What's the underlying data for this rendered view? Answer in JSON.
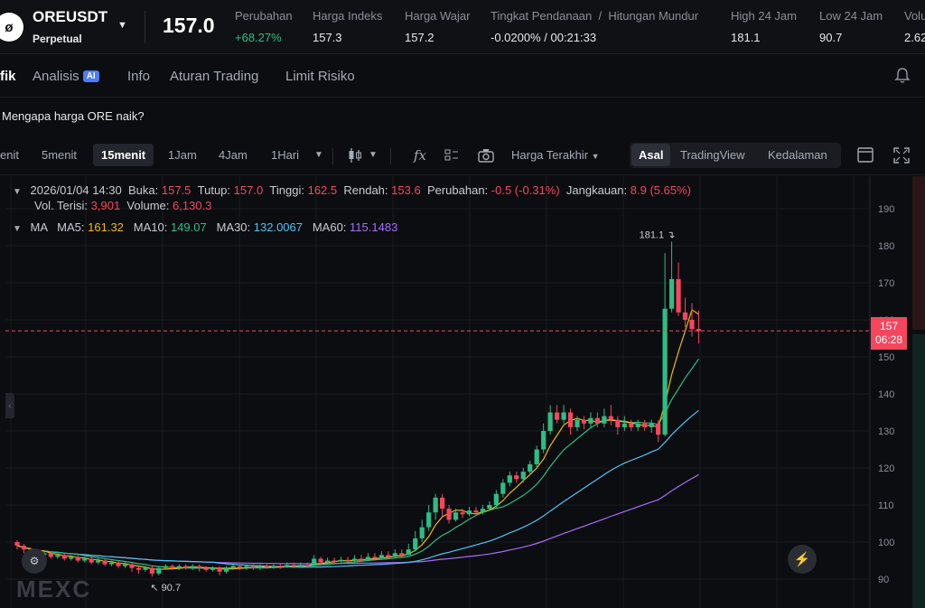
{
  "header": {
    "symbol": "OREUSDT",
    "contract_type": "Perpetual",
    "symbol_icon": "ore-logo-icon",
    "last_price": "157.0",
    "stats": [
      {
        "label": "Perubahan",
        "value": "+68.27%",
        "tone": "up"
      },
      {
        "label": "Harga Indeks",
        "value": "157.3"
      },
      {
        "label": "Harga Wajar",
        "value": "157.2"
      },
      {
        "label": "Tingkat Pendanaan  /  Hitungan Mundur",
        "value": "-0.0200% / 00:21:33"
      },
      {
        "label": "High 24 Jam",
        "value": "181.1"
      },
      {
        "label": "Low 24 Jam",
        "value": "90.7"
      },
      {
        "label": "Volu",
        "value": "2.62"
      }
    ]
  },
  "tabs": [
    {
      "label": "fik",
      "active": true
    },
    {
      "label": "Analisis",
      "badge": "AI"
    },
    {
      "label": "Info"
    },
    {
      "label": "Aturan Trading"
    },
    {
      "label": "Limit Risiko"
    }
  ],
  "why_link": "Mengapa harga ORE naik?",
  "timeframes": [
    "enit",
    "5menit",
    "15menit",
    "1Jam",
    "4Jam",
    "1Hari"
  ],
  "active_timeframe": "15menit",
  "price_type": "Harga Terakhir",
  "views": [
    "Asal",
    "TradingView",
    "Kedalaman"
  ],
  "active_view": "Asal",
  "ohlc": {
    "date": "2026/01/04 14:30",
    "open_label": "Buka:",
    "open": "157.5",
    "close_label": "Tutup:",
    "close": "157.0",
    "high_label": "Tinggi:",
    "high": "162.5",
    "low_label": "Rendah:",
    "low": "153.6",
    "change_label": "Perubahan:",
    "change": "-0.5 (-0.31%)",
    "range_label": "Jangkauan:",
    "range": "8.9 (5.65%)",
    "filled_label": "Vol. Terisi:",
    "filled": "3,901",
    "volume_label": "Volume:",
    "volume": "6,130.3"
  },
  "ma_legend": {
    "title": "MA",
    "ma5_label": "MA5:",
    "ma5": "161.32",
    "ma10_label": "MA10:",
    "ma10": "149.07",
    "ma30_label": "MA30:",
    "ma30": "132.0067",
    "ma60_label": "MA60:",
    "ma60": "115.1483"
  },
  "price_tag": {
    "price": "157",
    "countdown": "06:28"
  },
  "high_marker": "181.1",
  "low_marker": "90.7",
  "watermark": "MEXC",
  "colors": {
    "up": "#2ebd85",
    "down": "#f6465d",
    "ma5": "#f0b90b",
    "ma10": "#2ebd85",
    "ma30": "#4fc3f7",
    "ma60": "#a66cff"
  },
  "chart_data": {
    "type": "candlestick",
    "y_ticks": [
      190,
      180,
      170,
      160,
      150,
      140,
      130,
      120,
      110,
      100,
      90
    ],
    "ylim": [
      87,
      196
    ],
    "current_price": 157,
    "candles": [
      [
        100,
        99,
        100.5,
        98
      ],
      [
        99,
        98,
        99.5,
        97
      ],
      [
        98,
        97.5,
        98.5,
        96.5
      ],
      [
        97.5,
        96.5,
        98,
        96
      ],
      [
        96.5,
        97,
        97.5,
        96
      ],
      [
        97,
        96,
        97.5,
        95.5
      ],
      [
        96,
        96.5,
        97,
        95.5
      ],
      [
        96.5,
        95.5,
        97,
        95
      ],
      [
        95.5,
        96,
        96.5,
        95
      ],
      [
        96,
        95,
        96.5,
        94.5
      ],
      [
        95,
        95.5,
        96,
        94.5
      ],
      [
        95.5,
        94.5,
        96,
        94
      ],
      [
        94.5,
        95,
        95.5,
        94
      ],
      [
        95,
        94,
        95.5,
        93.5
      ],
      [
        94,
        94.5,
        95,
        93.5
      ],
      [
        94.5,
        93.5,
        95,
        93
      ],
      [
        93.5,
        94,
        94.5,
        93
      ],
      [
        94,
        93,
        94.5,
        92
      ],
      [
        93,
        92.5,
        93.5,
        91.5
      ],
      [
        92.5,
        93,
        93.5,
        92
      ],
      [
        93,
        91.5,
        93.5,
        90.7
      ],
      [
        91.5,
        93,
        93.5,
        91
      ],
      [
        93,
        93.5,
        94,
        92.5
      ],
      [
        93.5,
        93,
        94,
        92.5
      ],
      [
        93,
        93.5,
        94,
        92.5
      ],
      [
        93.5,
        93,
        94,
        92.5
      ],
      [
        93,
        93.5,
        94,
        92.5
      ],
      [
        93.5,
        93,
        94,
        92
      ],
      [
        93,
        92.5,
        93.5,
        92
      ],
      [
        92.5,
        93,
        93.5,
        92
      ],
      [
        93,
        92,
        93.5,
        91
      ],
      [
        92,
        93,
        93.5,
        91.5
      ],
      [
        93,
        93.5,
        94,
        92.5
      ],
      [
        93.5,
        93,
        94,
        92.5
      ],
      [
        93,
        93.5,
        94,
        92.5
      ],
      [
        93.5,
        93,
        94,
        92.5
      ],
      [
        93,
        93.5,
        94,
        92.5
      ],
      [
        93.5,
        93.2,
        94,
        92.8
      ],
      [
        93.2,
        93.6,
        94,
        92.8
      ],
      [
        93.6,
        93.3,
        94,
        92.8
      ],
      [
        93.3,
        93.8,
        94.5,
        93
      ],
      [
        93.8,
        93.5,
        94.5,
        93
      ],
      [
        93.5,
        93.8,
        94.5,
        93
      ],
      [
        93.8,
        93.6,
        94.5,
        93
      ],
      [
        93.6,
        95.5,
        96.5,
        93.5
      ],
      [
        95.5,
        94.5,
        96,
        94
      ],
      [
        94.5,
        95,
        95.8,
        94
      ],
      [
        95,
        94.8,
        95.8,
        94.2
      ],
      [
        94.8,
        95.2,
        96,
        94.5
      ],
      [
        95.2,
        95,
        96,
        94.5
      ],
      [
        95,
        95.5,
        96.5,
        94.8
      ],
      [
        95.5,
        95.2,
        96.5,
        94.8
      ],
      [
        95.2,
        96,
        97,
        95
      ],
      [
        96,
        95.6,
        97,
        95
      ],
      [
        95.6,
        96.5,
        97.5,
        95.5
      ],
      [
        96.5,
        96,
        97.5,
        95.5
      ],
      [
        96,
        97,
        98,
        95.8
      ],
      [
        97,
        96.5,
        98,
        96
      ],
      [
        96.5,
        98,
        99.5,
        96.5
      ],
      [
        98,
        101,
        103,
        97.5
      ],
      [
        101,
        104,
        106,
        100
      ],
      [
        104,
        108,
        110,
        103
      ],
      [
        108,
        112,
        113,
        106
      ],
      [
        112,
        109,
        113,
        107
      ],
      [
        109,
        106,
        110,
        105
      ],
      [
        106,
        108,
        109,
        105.5
      ],
      [
        108,
        107.5,
        109,
        106.5
      ],
      [
        107.5,
        108.5,
        109.5,
        107
      ],
      [
        108.5,
        108,
        109.5,
        107
      ],
      [
        108,
        109,
        110,
        107.5
      ],
      [
        109,
        110,
        111,
        108.5
      ],
      [
        110,
        113,
        114,
        109
      ],
      [
        113,
        116,
        117,
        112
      ],
      [
        116,
        118,
        119,
        115
      ],
      [
        118,
        117,
        119,
        116
      ],
      [
        117,
        119,
        120,
        116
      ],
      [
        119,
        121,
        122,
        118
      ],
      [
        121,
        125,
        126,
        120
      ],
      [
        125,
        130,
        132,
        124
      ],
      [
        130,
        135,
        137,
        129
      ],
      [
        135,
        133,
        137,
        132
      ],
      [
        133,
        135,
        137,
        132
      ],
      [
        135,
        131,
        136,
        129
      ],
      [
        131,
        133,
        134,
        130
      ],
      [
        133,
        132,
        134,
        130.5
      ],
      [
        132,
        133.5,
        135,
        131
      ],
      [
        133.5,
        132,
        135,
        131
      ],
      [
        132,
        134,
        136,
        131
      ],
      [
        134,
        133,
        137,
        131.5
      ],
      [
        133,
        131,
        134,
        129
      ],
      [
        131,
        132,
        134,
        130
      ],
      [
        132,
        131,
        133,
        130
      ],
      [
        131,
        132,
        133,
        130
      ],
      [
        132,
        131,
        133,
        130
      ],
      [
        131,
        132,
        133,
        129.5
      ],
      [
        132,
        129,
        133,
        127
      ],
      [
        129,
        163,
        178,
        128.5
      ],
      [
        163,
        171,
        181.1,
        162
      ],
      [
        171,
        162,
        175.5,
        161
      ],
      [
        162,
        160,
        166,
        158
      ],
      [
        160,
        157.5,
        164.5,
        155.5
      ],
      [
        157.5,
        157,
        162.5,
        153.6
      ]
    ]
  }
}
